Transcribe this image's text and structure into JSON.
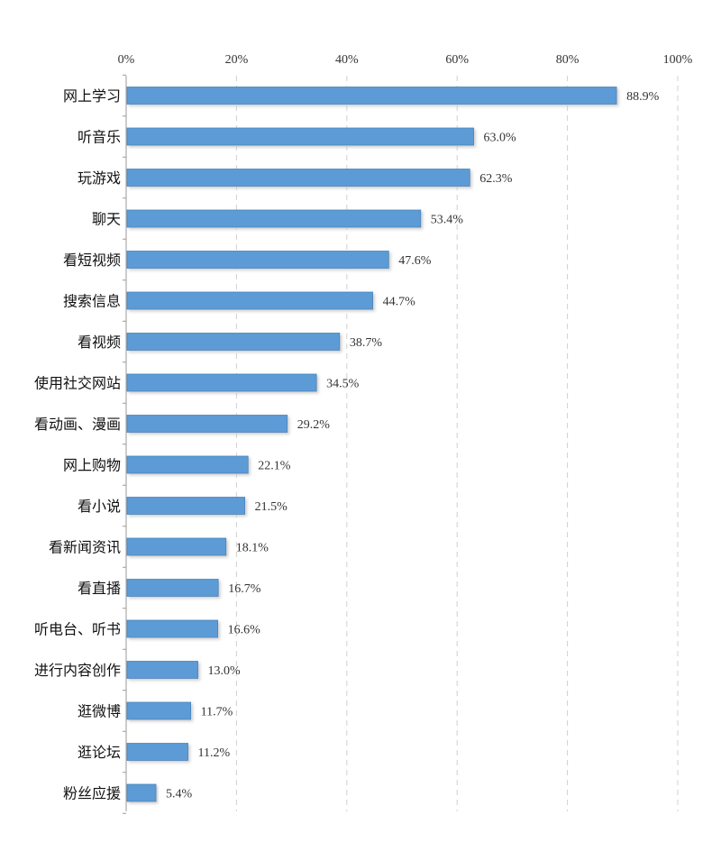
{
  "chart_data": {
    "type": "bar",
    "orientation": "horizontal",
    "categories": [
      "网上学习",
      "听音乐",
      "玩游戏",
      "聊天",
      "看短视频",
      "搜索信息",
      "看视频",
      "使用社交网站",
      "看动画、漫画",
      "网上购物",
      "看小说",
      "看新闻资讯",
      "看直播",
      "听电台、听书",
      "进行内容创作",
      "逛微博",
      "逛论坛",
      "粉丝应援"
    ],
    "values": [
      88.9,
      63.0,
      62.3,
      53.4,
      47.6,
      44.7,
      38.7,
      34.5,
      29.2,
      22.1,
      21.5,
      18.1,
      16.7,
      16.6,
      13.0,
      11.7,
      11.2,
      5.4
    ],
    "value_labels": [
      "88.9%",
      "63.0%",
      "62.3%",
      "53.4%",
      "47.6%",
      "44.7%",
      "38.7%",
      "34.5%",
      "29.2%",
      "22.1%",
      "21.5%",
      "18.1%",
      "16.7%",
      "16.6%",
      "13.0%",
      "11.7%",
      "11.2%",
      "5.4%"
    ],
    "x_ticks": [
      0,
      20,
      40,
      60,
      80,
      100
    ],
    "x_tick_labels": [
      "0%",
      "20%",
      "40%",
      "60%",
      "80%",
      "100%"
    ],
    "xlim": [
      0,
      100
    ],
    "axis_position": "top",
    "grid": true,
    "grid_style": "dashed vertical",
    "legend": "none",
    "title": "",
    "xlabel": "",
    "ylabel": "",
    "colors": {
      "bar": "#5B9BD5",
      "bar_edge": "#4A84BA",
      "shadow": "#C9C9C9",
      "grid": "#D0D0D0",
      "axis": "#999999"
    }
  }
}
